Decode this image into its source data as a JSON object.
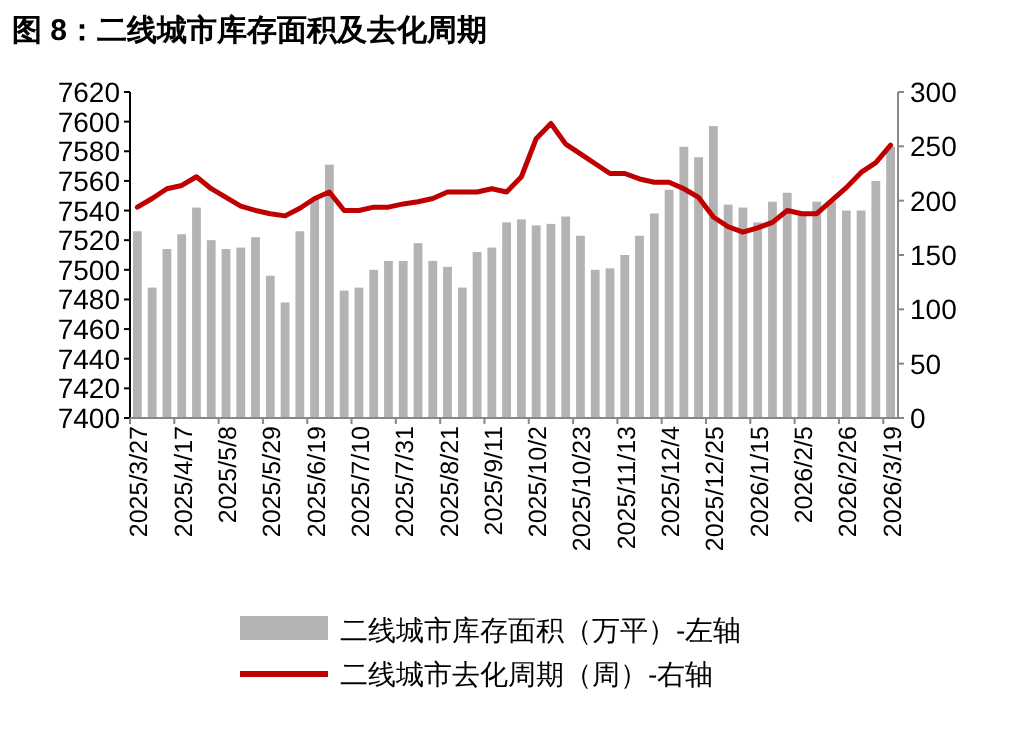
{
  "chart_data": {
    "type": "bar",
    "title": "图 8：二线城市库存面积及去化周期",
    "categories": [
      "2025/3/27",
      null,
      null,
      "2025/4/17",
      null,
      null,
      "2025/5/8",
      null,
      null,
      "2025/5/29",
      null,
      null,
      "2025/6/19",
      null,
      null,
      "2025/7/10",
      null,
      null,
      "2025/7/31",
      null,
      null,
      "2025/8/21",
      null,
      null,
      "2025/9/11",
      null,
      null,
      "2025/10/2",
      null,
      null,
      "2025/10/23",
      null,
      null,
      "2025/11/13",
      null,
      null,
      "2025/12/4",
      null,
      null,
      "2025/12/25",
      null,
      null,
      "2026/1/15",
      null,
      null,
      "2026/2/5",
      null,
      null,
      "2026/2/26",
      null,
      null,
      "2026/3/19"
    ],
    "series": [
      {
        "name": "二线城市库存面积（万平）-左轴",
        "color": "#b3b3b3",
        "values": [
          7526,
          7488,
          7514,
          7524,
          7542,
          7520,
          7514,
          7515,
          7522,
          7496,
          7478,
          7526,
          7548,
          7571,
          7486,
          7488,
          7500,
          7506,
          7506,
          7518,
          7506,
          7502,
          7488,
          7512,
          7515,
          7532,
          7534,
          7530,
          7531,
          7536,
          7523,
          7500,
          7501,
          7510,
          7523,
          7538,
          7554,
          7583,
          7576,
          7597,
          7544,
          7542,
          7532,
          7546,
          7552,
          7538,
          7546,
          7546,
          7540,
          7540,
          7560,
          7583
        ]
      },
      {
        "name": "二线城市去化周期（周）-右轴",
        "type": "line",
        "axis": "y2",
        "color": "#c00000",
        "values": [
          194,
          202,
          211,
          214,
          222,
          211,
          203,
          195,
          191,
          188,
          186,
          193,
          202,
          208,
          191,
          191,
          194,
          194,
          197,
          199,
          202,
          208,
          208,
          208,
          211,
          208,
          222,
          257,
          271,
          252,
          243,
          234,
          225,
          225,
          220,
          217,
          217,
          211,
          203,
          185,
          176,
          171,
          175,
          180,
          191,
          188,
          188,
          200,
          212,
          226,
          235,
          251
        ]
      }
    ],
    "ylim": [
      7400,
      7620
    ],
    "yticks": [
      7400,
      7420,
      7440,
      7460,
      7480,
      7500,
      7520,
      7540,
      7560,
      7580,
      7600,
      7620
    ],
    "y2lim": [
      0,
      300
    ],
    "y2ticks": [
      0,
      50,
      100,
      150,
      200,
      250,
      300
    ],
    "legend": "bottom",
    "grid": false
  }
}
